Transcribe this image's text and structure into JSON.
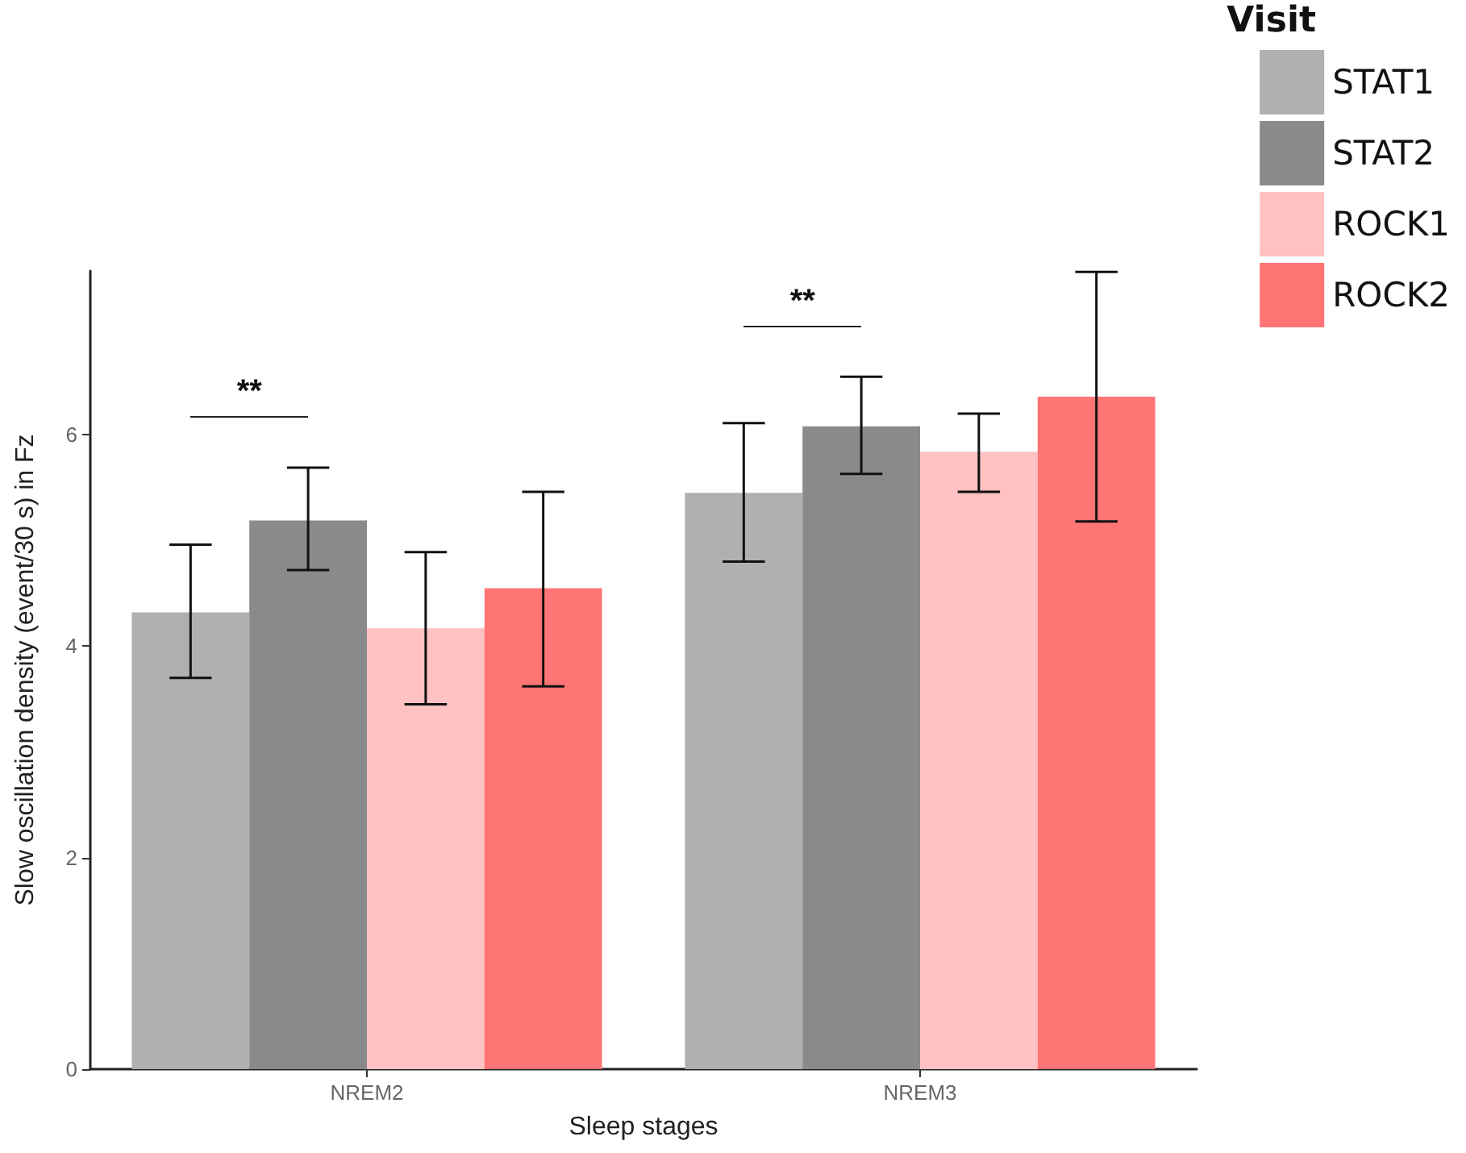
{
  "chart_data": {
    "type": "bar",
    "xlabel": "Sleep stages",
    "ylabel": "Slow oscillation density (event/30 s) in Fz",
    "legend_title": "Visit",
    "legend": "top right",
    "grid": false,
    "categories": [
      "NREM2",
      "NREM3"
    ],
    "ylim": [
      0,
      7.55
    ],
    "yticks": [
      0,
      2,
      4,
      6
    ],
    "series": [
      {
        "name": "STAT1",
        "color": "#b0b0b0",
        "values": [
          4.32,
          5.45
        ],
        "errors": [
          [
            3.7,
            4.96
          ],
          [
            4.8,
            6.11
          ]
        ]
      },
      {
        "name": "STAT2",
        "color": "#8a8a8a",
        "values": [
          5.19,
          6.08
        ],
        "errors": [
          [
            4.72,
            5.69
          ],
          [
            5.63,
            6.55
          ]
        ]
      },
      {
        "name": "ROCK1",
        "color": "#ffc1c1",
        "values": [
          4.17,
          5.84
        ],
        "errors": [
          [
            3.45,
            4.89
          ],
          [
            5.46,
            6.2
          ]
        ]
      },
      {
        "name": "ROCK2",
        "color": "#ff7575",
        "values": [
          4.55,
          6.36
        ],
        "errors": [
          [
            3.62,
            5.46
          ],
          [
            5.18,
            7.54
          ]
        ]
      }
    ],
    "annotations": [
      "**",
      "**"
    ]
  }
}
